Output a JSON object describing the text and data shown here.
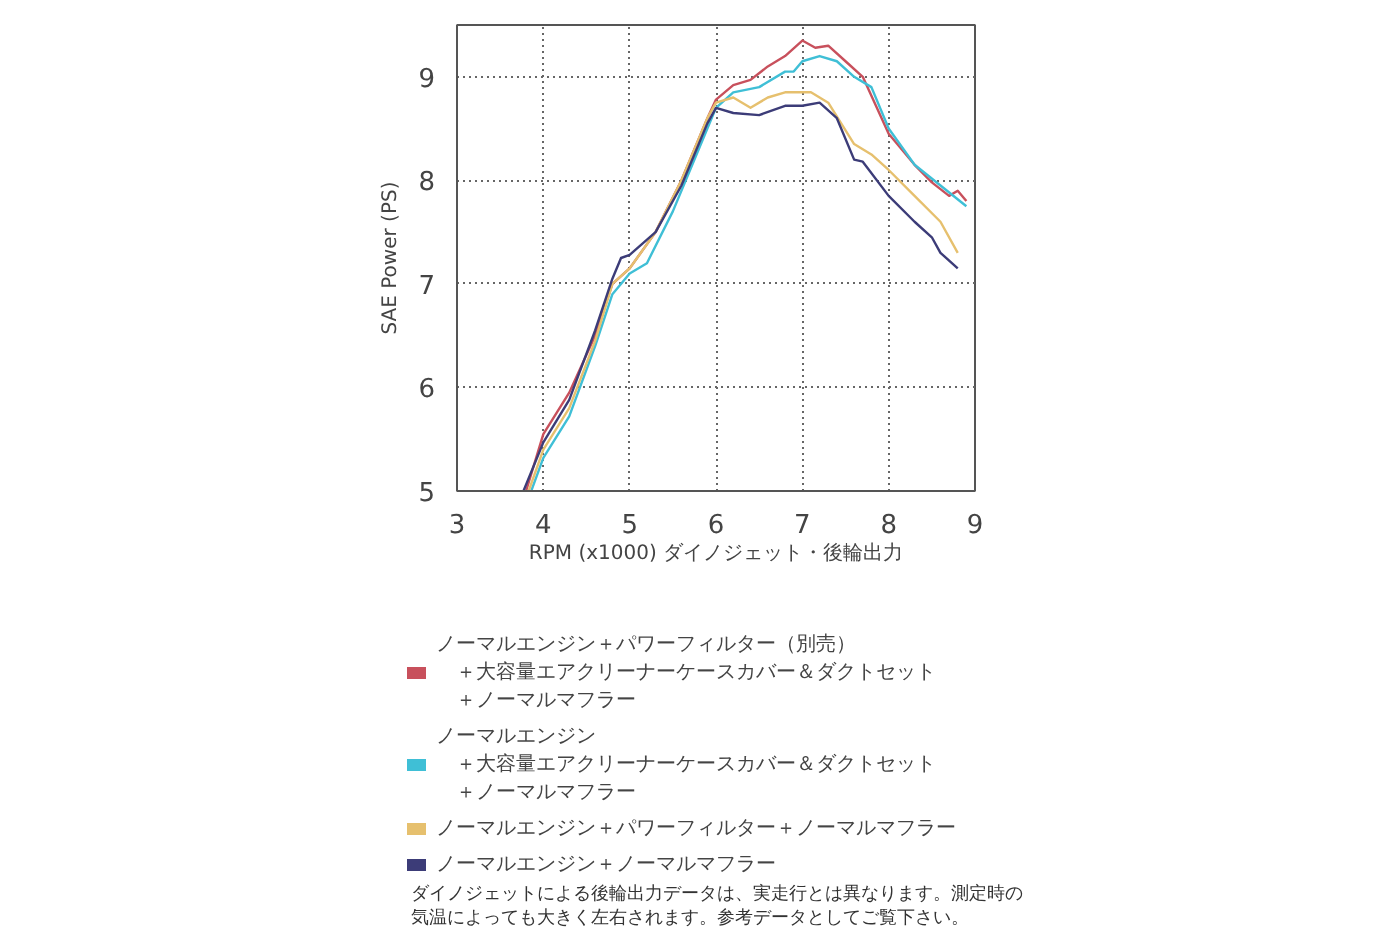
{
  "chart_data": {
    "type": "line",
    "xlabel": "RPM (x1000) ダイノジェット・後輪出力",
    "ylabel": "SAE Power (PS)",
    "xlim": [
      3,
      9
    ],
    "ylim": [
      5,
      9.5
    ],
    "xticks": [
      3,
      4,
      5,
      6,
      7,
      8,
      9
    ],
    "yticks": [
      5,
      6,
      7,
      8,
      9
    ],
    "grid": true,
    "legend": "bottom",
    "line_style": "solid",
    "series": [
      {
        "name": "ノーマルエンジン＋パワーフィルター（別売）＋大容量エアクリーナーケースカバー＆ダクトセット＋ノーマルマフラー",
        "color": "#c8505c",
        "x": [
          3.8,
          4.0,
          4.3,
          4.6,
          4.8,
          5.0,
          5.3,
          5.6,
          5.9,
          6.0,
          6.2,
          6.4,
          6.6,
          6.8,
          7.0,
          7.15,
          7.3,
          7.5,
          7.7,
          8.0,
          8.3,
          8.5,
          8.7,
          8.8,
          8.9
        ],
        "values": [
          5.0,
          5.55,
          5.95,
          6.5,
          7.0,
          7.15,
          7.5,
          8.0,
          8.6,
          8.78,
          8.92,
          8.97,
          9.1,
          9.2,
          9.35,
          9.28,
          9.3,
          9.15,
          9.0,
          8.45,
          8.15,
          7.98,
          7.85,
          7.9,
          7.8
        ]
      },
      {
        "name": "ノーマルエンジン＋大容量エアクリーナーケースカバー＆ダクトセット＋ノーマルマフラー",
        "color": "#3fbfd6",
        "x": [
          3.86,
          4.0,
          4.3,
          4.6,
          4.8,
          5.0,
          5.2,
          5.5,
          5.8,
          6.0,
          6.2,
          6.5,
          6.8,
          6.9,
          7.0,
          7.2,
          7.4,
          7.6,
          7.8,
          8.0,
          8.3,
          8.6,
          8.9
        ],
        "values": [
          5.0,
          5.32,
          5.72,
          6.4,
          6.9,
          7.1,
          7.2,
          7.7,
          8.3,
          8.7,
          8.85,
          8.9,
          9.05,
          9.05,
          9.15,
          9.2,
          9.15,
          9.0,
          8.9,
          8.5,
          8.15,
          7.95,
          7.75
        ]
      },
      {
        "name": "ノーマルエンジン＋パワーフィルター＋ノーマルマフラー",
        "color": "#e6c06e",
        "x": [
          3.83,
          4.0,
          4.3,
          4.6,
          4.8,
          5.0,
          5.3,
          5.6,
          5.9,
          6.0,
          6.2,
          6.4,
          6.6,
          6.8,
          7.1,
          7.3,
          7.6,
          7.8,
          8.0,
          8.3,
          8.6,
          8.8
        ],
        "values": [
          5.0,
          5.4,
          5.8,
          6.45,
          7.0,
          7.15,
          7.5,
          8.0,
          8.6,
          8.75,
          8.8,
          8.7,
          8.8,
          8.85,
          8.85,
          8.75,
          8.35,
          8.25,
          8.1,
          7.85,
          7.6,
          7.3
        ]
      },
      {
        "name": "ノーマルエンジン＋ノーマルマフラー",
        "color": "#3c3c78",
        "x": [
          3.77,
          4.0,
          4.3,
          4.6,
          4.8,
          4.9,
          5.0,
          5.3,
          5.6,
          5.9,
          6.0,
          6.2,
          6.5,
          6.8,
          7.0,
          7.2,
          7.4,
          7.6,
          7.7,
          8.0,
          8.3,
          8.5,
          8.6,
          8.8
        ],
        "values": [
          5.0,
          5.47,
          5.88,
          6.55,
          7.05,
          7.25,
          7.28,
          7.5,
          7.95,
          8.55,
          8.7,
          8.65,
          8.63,
          8.72,
          8.72,
          8.75,
          8.6,
          8.2,
          8.18,
          7.85,
          7.6,
          7.45,
          7.3,
          7.15
        ]
      }
    ],
    "annotations": [
      "ダイノジェットによる後輪出力データは、実走行とは異なります。測定時の気温によっても大きく左右されます。参考データとしてご覧下さい。"
    ]
  }
}
